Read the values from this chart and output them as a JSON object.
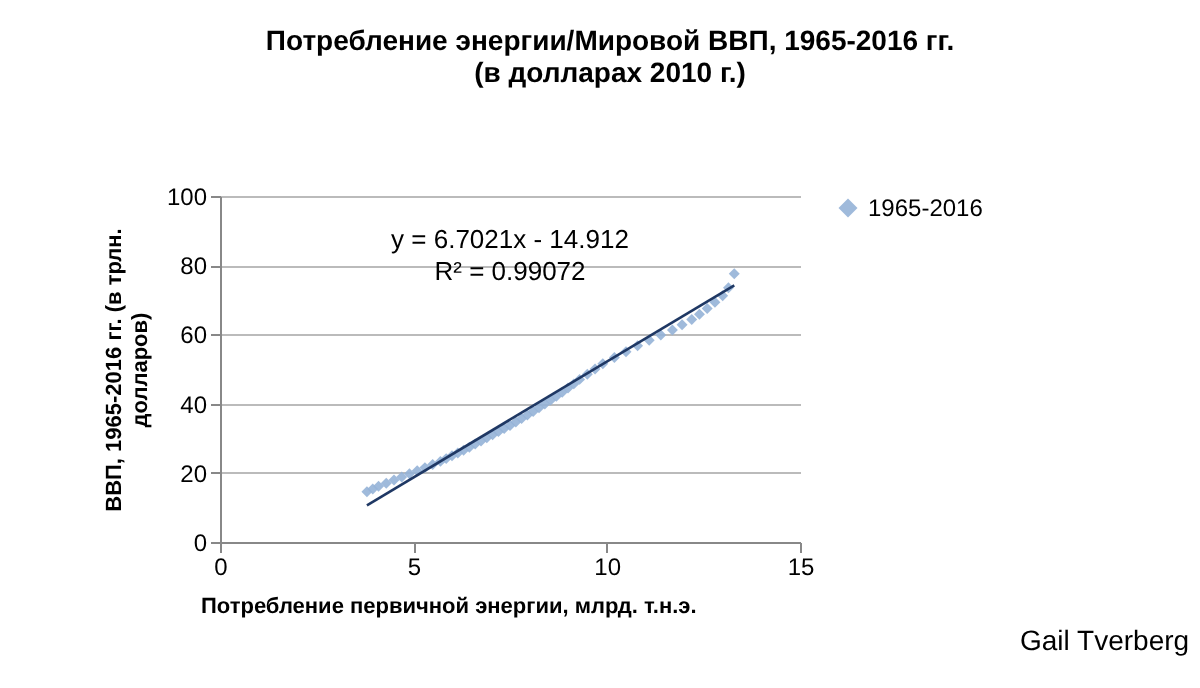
{
  "chart_data": {
    "type": "scatter",
    "title": "Потребление энергии/Мировой ВВП, 1965-2016 гг.\n(в долларах 2010 г.)",
    "xlabel": "Потребление первичной энергии, млрд. т.н.э.",
    "ylabel": "ВВП, 1965-2016 гг. (в трлн.\nдолларов)",
    "annotations": [
      "y = 6.7021x - 14.912",
      "R² = 0.99072",
      "Gail Tverberg"
    ],
    "xlim": [
      0,
      15
    ],
    "xticks": [
      0,
      5,
      10,
      15
    ],
    "ylim": [
      0,
      100
    ],
    "yticks": [
      0,
      20,
      40,
      60,
      80,
      100
    ],
    "grid": "y",
    "legend": "right",
    "marker": "diamond",
    "series": [
      {
        "name": "1965-2016",
        "color": "#95b3d7",
        "x": [
          3.8,
          3.95,
          4.1,
          4.3,
          4.5,
          4.7,
          4.9,
          5.1,
          5.3,
          5.5,
          5.7,
          5.85,
          6.0,
          6.15,
          6.3,
          6.45,
          6.6,
          6.75,
          6.9,
          7.05,
          7.2,
          7.35,
          7.5,
          7.65,
          7.8,
          7.95,
          8.1,
          8.25,
          8.4,
          8.55,
          8.7,
          8.85,
          9.0,
          9.15,
          9.3,
          9.5,
          9.7,
          9.9,
          10.2,
          10.5,
          10.8,
          11.1,
          11.4,
          11.7,
          11.95,
          12.2,
          12.4,
          12.6,
          12.8,
          13.0,
          13.15,
          13.3
        ],
        "values": [
          14.5,
          15.3,
          16.1,
          17.0,
          17.9,
          18.8,
          19.7,
          20.6,
          21.5,
          22.4,
          23.3,
          24.1,
          24.9,
          25.7,
          26.5,
          27.4,
          28.3,
          29.2,
          30.1,
          31.0,
          31.9,
          32.8,
          33.7,
          34.7,
          35.7,
          36.7,
          37.7,
          38.8,
          39.9,
          41.0,
          42.1,
          43.3,
          44.5,
          45.7,
          47.0,
          48.5,
          50.0,
          51.5,
          53.3,
          55.0,
          56.7,
          58.3,
          59.8,
          61.3,
          62.8,
          64.3,
          65.8,
          67.5,
          69.3,
          71.2,
          73.5,
          77.5
        ]
      },
      {
        "color": "#1f3864",
        "type": "line",
        "marker": "none",
        "x": [
          3.8,
          13.3
        ],
        "values": [
          10.6,
          74.2
        ]
      }
    ]
  }
}
